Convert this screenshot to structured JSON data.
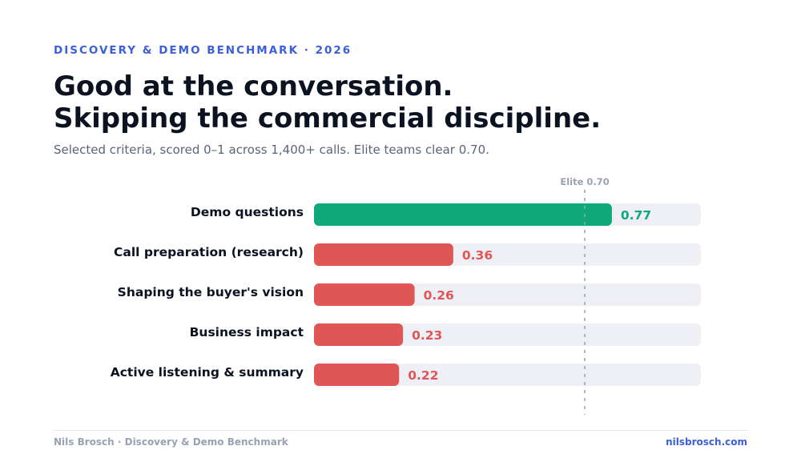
{
  "header": {
    "eyebrow": "DISCOVERY & DEMO BENCHMARK · 2026",
    "title_line1": "Good at the conversation.",
    "title_line2": "Skipping the commercial discipline.",
    "subtitle": "Selected criteria, scored 0–1 across 1,400+ calls. Elite teams clear 0.70."
  },
  "chart_data": {
    "type": "bar",
    "orientation": "horizontal",
    "title": "Good at the conversation. Skipping the commercial discipline.",
    "xlim": [
      0,
      1
    ],
    "grid": false,
    "categories": [
      "Demo questions",
      "Call preparation (research)",
      "Shaping the buyer's vision",
      "Business impact",
      "Active listening & summary"
    ],
    "values": [
      0.77,
      0.36,
      0.26,
      0.23,
      0.22
    ],
    "value_labels": [
      "0.77",
      "0.36",
      "0.26",
      "0.23",
      "0.22"
    ],
    "reference_line": {
      "value": 0.7,
      "label": "Elite 0.70"
    },
    "colors": {
      "above_threshold": "#0fa878",
      "below_threshold": "#e05656",
      "track": "#eff0f5",
      "reference": "#9aa1b2"
    }
  },
  "footer": {
    "left": "Nils Brosch · Discovery & Demo Benchmark",
    "right": "nilsbrosch.com"
  }
}
